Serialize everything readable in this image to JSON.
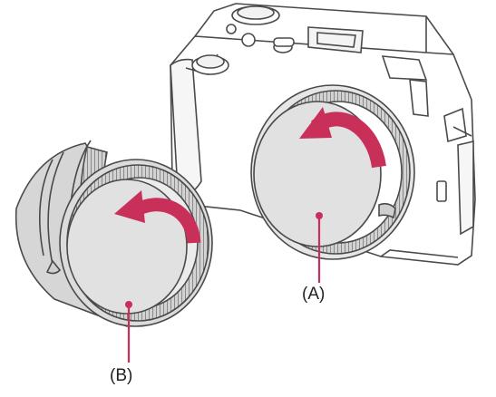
{
  "labels": {
    "a": "(A)",
    "b": "(B)"
  },
  "colors": {
    "outline": "#4a4a4a",
    "body_fill": "#ffffff",
    "cap_fill": "#e3e3e3",
    "ring_fill": "#d2d2d2",
    "lens_fill": "#ececec",
    "arrow": "#c8305a",
    "leader": "#c8305a"
  },
  "icons": {
    "camera": "camera-body-illustration",
    "lens": "lens-illustration",
    "rotate_arrow": "curved-rotate-arrow"
  }
}
